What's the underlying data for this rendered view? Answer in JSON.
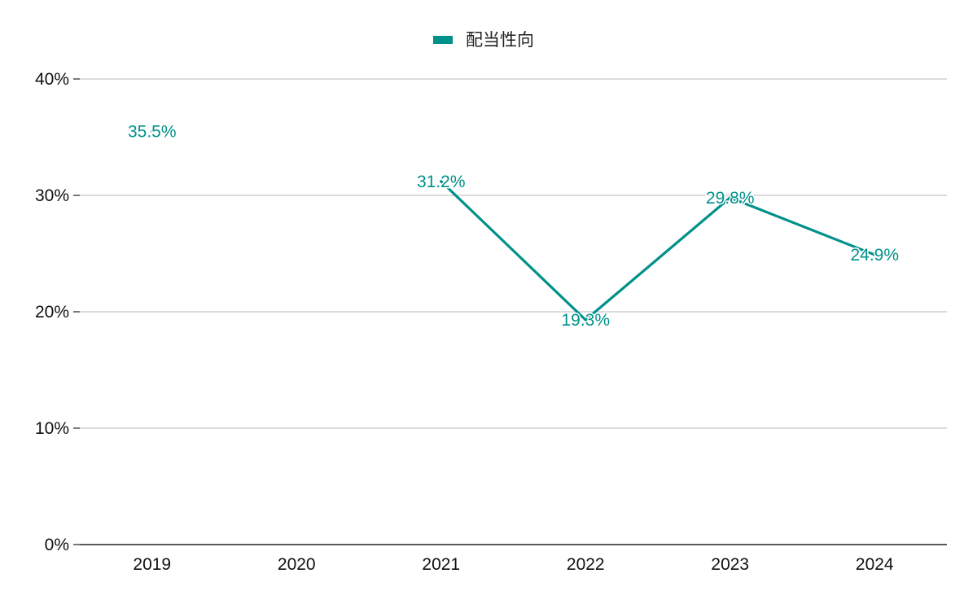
{
  "chart_data": {
    "type": "line",
    "title": "",
    "xlabel": "",
    "ylabel": "",
    "categories": [
      "2019",
      "2020",
      "2021",
      "2022",
      "2023",
      "2024"
    ],
    "series": [
      {
        "name": "配当性向",
        "values": [
          35.5,
          null,
          31.2,
          19.3,
          29.8,
          24.9
        ],
        "data_labels": [
          "35.5%",
          "",
          "31.2%",
          "19.3%",
          "29.8%",
          "24.9%"
        ]
      }
    ],
    "ylim": [
      0,
      40
    ],
    "yticks": [
      0,
      10,
      20,
      30,
      40
    ],
    "ytick_labels": [
      "0%",
      "10%",
      "20%",
      "30%",
      "40%"
    ],
    "grid": true,
    "legend_position": "top-center",
    "colors": {
      "series": "#00918a",
      "grid": "#c8c8c8",
      "axis": "#222222",
      "text": "#111111"
    }
  }
}
